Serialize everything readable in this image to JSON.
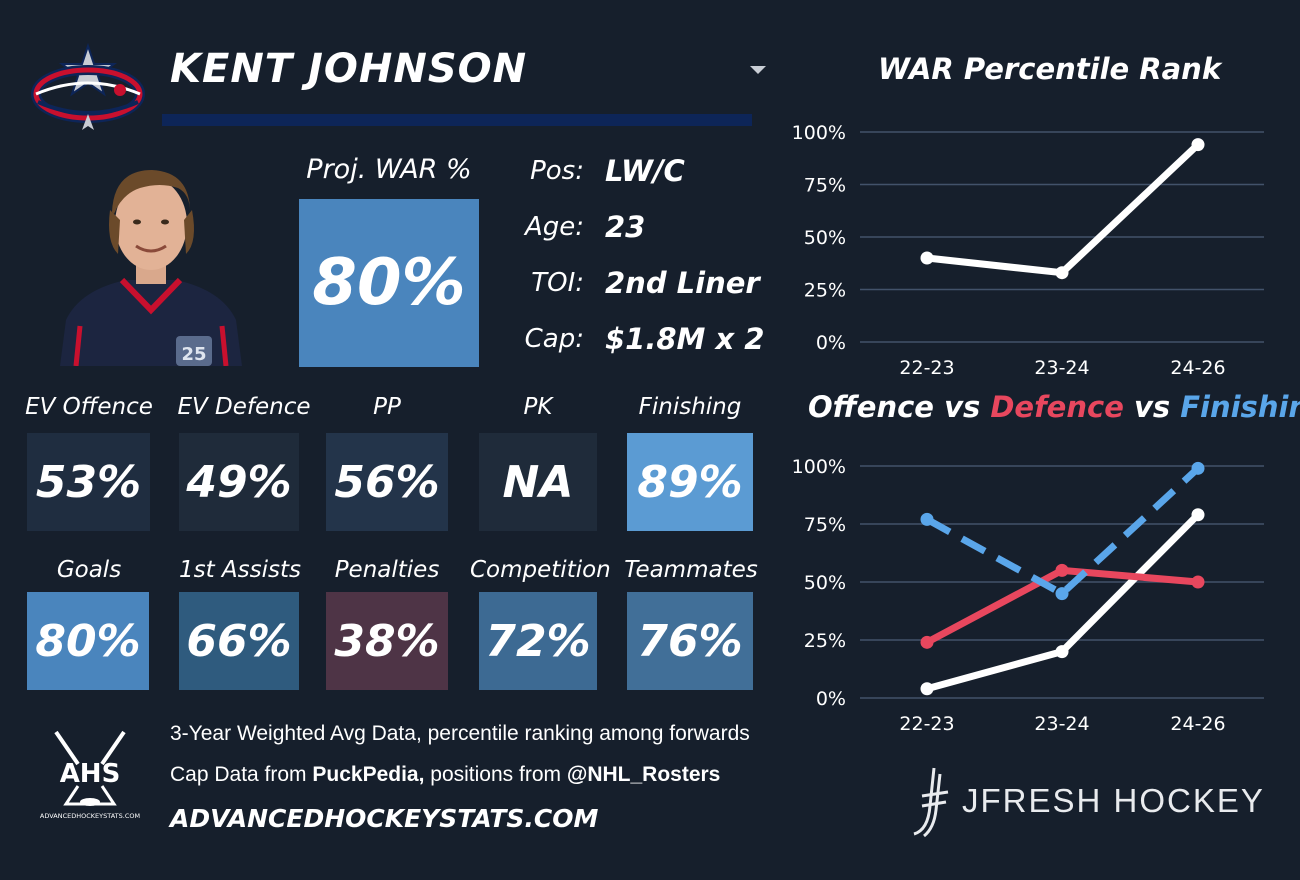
{
  "player": {
    "name": "KENT JOHNSON"
  },
  "projected": {
    "label": "Proj. WAR %",
    "value": "80%"
  },
  "info": [
    {
      "label": "Pos:",
      "value": "LW/C"
    },
    {
      "label": "Age:",
      "value": "23"
    },
    {
      "label": "TOI:",
      "value": "2nd Liner"
    },
    {
      "label": "Cap:",
      "value": "$1.8M x 2"
    }
  ],
  "stats_row1": [
    {
      "label": "EV Offence",
      "value": "53%",
      "color": "#1f2d40"
    },
    {
      "label": "EV Defence",
      "value": "49%",
      "color": "#1f2b3a"
    },
    {
      "label": "PP",
      "value": "56%",
      "color": "#23344a"
    },
    {
      "label": "PK",
      "value": "NA",
      "color": "#1f2b3a"
    },
    {
      "label": "Finishing",
      "value": "89%",
      "color": "#5b9bd3"
    }
  ],
  "stats_row2": [
    {
      "label": "Goals",
      "value": "80%",
      "color": "#4a85bd"
    },
    {
      "label": "1st Assists",
      "value": "66%",
      "color": "#2f5b7e"
    },
    {
      "label": "Penalties",
      "value": "38%",
      "color": "#4e3446"
    },
    {
      "label": "Competition",
      "value": "72%",
      "color": "#3d6a93"
    },
    {
      "label": "Teammates",
      "value": "76%",
      "color": "#416f98"
    }
  ],
  "footer": {
    "line1": "3-Year Weighted Avg Data, percentile ranking among forwards",
    "line2_prefix": "Cap Data from ",
    "line2_source1": "PuckPedia,",
    "line2_middle": " positions from ",
    "line2_source2": "@NHL_Rosters",
    "line3": "ADVANCEDHOCKEYSTATS.COM",
    "ahs_logo": "AHS",
    "ahs_caption": "ADVANCEDHOCKEYSTATS.COM",
    "brand": "JFRESH HOCKEY"
  },
  "icons": {
    "team_logo": "columbus-blue-jackets-logo",
    "dropdown": "chevron-down-icon",
    "headshot": "player-headshot"
  },
  "chart_data": [
    {
      "type": "line",
      "title": "WAR Percentile Rank",
      "categories": [
        "22-23",
        "23-24",
        "24-26"
      ],
      "y_ticks": [
        "0%",
        "25%",
        "50%",
        "75%",
        "100%"
      ],
      "ylim": [
        0,
        100
      ],
      "grid": true,
      "series": [
        {
          "values": [
            40,
            33,
            94
          ],
          "color": "#ffffff",
          "dashed": false
        }
      ]
    },
    {
      "type": "line",
      "title_parts": [
        "Offence",
        " vs ",
        "Defence",
        " vs ",
        "Finishing"
      ],
      "title_colors": [
        "#ffffff",
        "#ffffff",
        "#e8475e",
        "#ffffff",
        "#5aa6ea"
      ],
      "categories": [
        "22-23",
        "23-24",
        "24-26"
      ],
      "y_ticks": [
        "0%",
        "25%",
        "50%",
        "75%",
        "100%"
      ],
      "ylim": [
        0,
        100
      ],
      "grid": true,
      "series": [
        {
          "name": "Offence",
          "values": [
            4,
            20,
            79
          ],
          "color": "#ffffff",
          "dashed": false
        },
        {
          "name": "Defence",
          "values": [
            24,
            55,
            50
          ],
          "color": "#e8475e",
          "dashed": false
        },
        {
          "name": "Finishing",
          "values": [
            77,
            45,
            99
          ],
          "color": "#5aa6ea",
          "dashed": true
        }
      ]
    }
  ]
}
